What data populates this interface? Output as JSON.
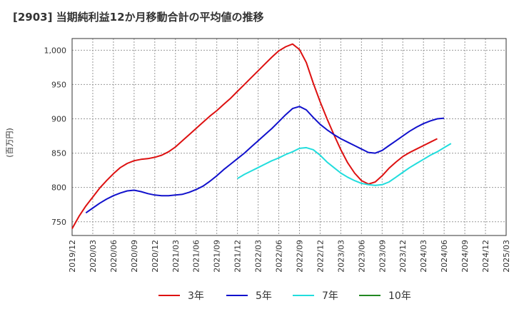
{
  "chart_data": {
    "type": "line",
    "title": "[2903]  当期純利益12か月移動合計の平均値の推移",
    "ylabel": "(百万円)",
    "xlabel": "",
    "ylim": [
      730,
      1017
    ],
    "yticks": [
      750,
      800,
      850,
      900,
      950,
      1000
    ],
    "ytick_labels": [
      "750",
      "800",
      "850",
      "900",
      "950",
      "1,000"
    ],
    "xticks": [
      "2019/12",
      "2020/03",
      "2020/06",
      "2020/09",
      "2020/12",
      "2021/03",
      "2021/06",
      "2021/09",
      "2021/12",
      "2022/03",
      "2022/06",
      "2022/09",
      "2022/12",
      "2023/03",
      "2023/06",
      "2023/09",
      "2023/12",
      "2024/03",
      "2024/06",
      "2024/09",
      "2024/12",
      "2025/03"
    ],
    "grid": true,
    "legend_position": "bottom",
    "series": [
      {
        "name": "3年",
        "color": "#dd1111",
        "values": [
          740,
          758,
          773,
          786,
          799,
          810,
          820,
          829,
          835,
          839,
          841,
          842,
          844,
          847,
          852,
          859,
          868,
          877,
          886,
          895,
          904,
          912,
          921,
          930,
          940,
          950,
          960,
          970,
          980,
          990,
          999,
          1005,
          1009,
          1001,
          982,
          952,
          925,
          900,
          877,
          855,
          836,
          821,
          810,
          805,
          808,
          817,
          828,
          837,
          845,
          851,
          856,
          861,
          866,
          871
        ]
      },
      {
        "name": "5年",
        "color": "#1111cc",
        "values": [
          null,
          null,
          763,
          770,
          777,
          783,
          788,
          792,
          795,
          796,
          794,
          791,
          789,
          788,
          788,
          789,
          790,
          793,
          797,
          802,
          809,
          817,
          826,
          834,
          842,
          850,
          859,
          868,
          877,
          886,
          896,
          906,
          915,
          918,
          913,
          902,
          892,
          884,
          877,
          871,
          866,
          861,
          856,
          851,
          850,
          854,
          861,
          868,
          875,
          882,
          888,
          893,
          897,
          900,
          901
        ]
      },
      {
        "name": "7年",
        "color": "#22dddd",
        "values": [
          null,
          null,
          null,
          null,
          null,
          null,
          null,
          null,
          null,
          null,
          null,
          null,
          null,
          null,
          null,
          null,
          null,
          null,
          null,
          null,
          null,
          null,
          null,
          null,
          813,
          819,
          824,
          829,
          834,
          839,
          843,
          848,
          852,
          857,
          858,
          855,
          847,
          837,
          829,
          821,
          815,
          810,
          806,
          804,
          803,
          804,
          808,
          815,
          822,
          829,
          835,
          841,
          847,
          852,
          858,
          864
        ]
      },
      {
        "name": "10年",
        "color": "#228822",
        "values": []
      }
    ]
  }
}
